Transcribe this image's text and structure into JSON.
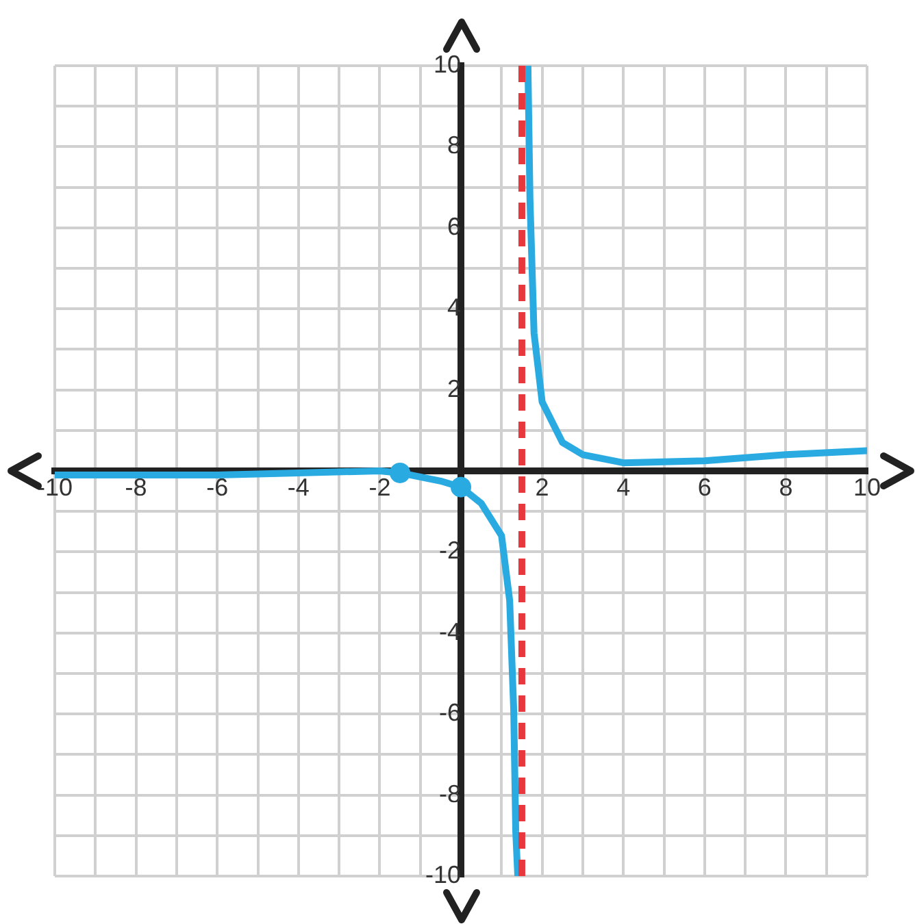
{
  "chart_data": {
    "type": "line",
    "xlim": [
      -10,
      10
    ],
    "ylim": [
      -10,
      10
    ],
    "xticks": [
      -10,
      {
        "value": -9,
        "label": null
      },
      -8,
      {
        "value": -7,
        "label": null
      },
      -6,
      {
        "value": -5,
        "label": null
      },
      -4,
      {
        "value": -3,
        "label": null
      },
      -2,
      {
        "value": -1,
        "label": null
      },
      {
        "value": 0,
        "label": null
      },
      {
        "value": 1,
        "label": null
      },
      2,
      {
        "value": 3,
        "label": null
      },
      4,
      {
        "value": 5,
        "label": null
      },
      6,
      {
        "value": 7,
        "label": null
      },
      8,
      {
        "value": 9,
        "label": null
      },
      10
    ],
    "yticks": [
      -10,
      {
        "value": -9,
        "label": null
      },
      -8,
      {
        "value": -7,
        "label": null
      },
      -6,
      {
        "value": -5,
        "label": null
      },
      -4,
      {
        "value": -3,
        "label": null
      },
      -2,
      {
        "value": -1,
        "label": null
      },
      {
        "value": 0,
        "label": null
      },
      {
        "value": 1,
        "label": null
      },
      2,
      {
        "value": 3,
        "label": null
      },
      4,
      {
        "value": 5,
        "label": null
      },
      6,
      {
        "value": 7,
        "label": null
      },
      8,
      {
        "value": 9,
        "label": null
      },
      10
    ],
    "grid": true,
    "legend": false,
    "marker": "none",
    "line_style": "solid",
    "series": [
      {
        "color": "#29abe2",
        "x": [
          -10,
          -8,
          -6,
          -4,
          -2,
          -1.5,
          -1,
          -0.5,
          0,
          0.5,
          1,
          1.2,
          1.3,
          1.35,
          1.4,
          1.5,
          1.65,
          1.7,
          1.8,
          2,
          2.5,
          3,
          4,
          6,
          8,
          10
        ],
        "values": [
          -0.1,
          -0.1,
          -0.1,
          -0.05,
          0,
          -0.05,
          -0.15,
          -0.25,
          -0.4,
          -0.8,
          -1.6,
          -3.2,
          -5.9,
          -8.9,
          -10,
          null,
          10,
          6.7,
          3.4,
          1.7,
          0.7,
          0.4,
          0.2,
          0.25,
          0.4,
          0.5
        ]
      },
      {
        "type": "scatter",
        "marker": "circle",
        "color": "#29abe2",
        "x": [
          -1.5,
          0
        ],
        "values": [
          -0.05,
          -0.4
        ]
      }
    ],
    "ref_lines": [
      {
        "axis": "x",
        "value": 1.5,
        "color": "#e8383d",
        "line_style": "dashed"
      }
    ]
  }
}
